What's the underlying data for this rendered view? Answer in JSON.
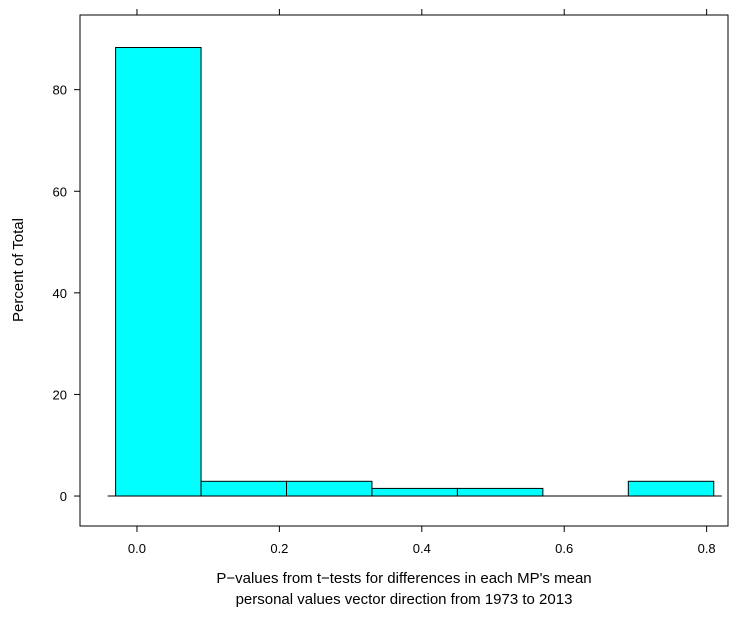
{
  "chart_data": {
    "type": "bar",
    "xlabel_lines": [
      "P−values from t−tests for differences in each MP's mean",
      "personal values vector direction from 1973 to 2013"
    ],
    "ylabel": "Percent of Total",
    "bins": [
      {
        "start": -0.03,
        "end": 0.09,
        "value": 88.3
      },
      {
        "start": 0.09,
        "end": 0.21,
        "value": 2.9
      },
      {
        "start": 0.21,
        "end": 0.33,
        "value": 2.9
      },
      {
        "start": 0.33,
        "end": 0.45,
        "value": 1.5
      },
      {
        "start": 0.45,
        "end": 0.57,
        "value": 1.5
      },
      {
        "start": 0.57,
        "end": 0.69,
        "value": 0
      },
      {
        "start": 0.69,
        "end": 0.81,
        "value": 2.9
      }
    ],
    "x_ticks": [
      0.0,
      0.2,
      0.4,
      0.6,
      0.8
    ],
    "x_tick_labels": [
      "0.0",
      "0.2",
      "0.4",
      "0.6",
      "0.8"
    ],
    "y_ticks": [
      0,
      20,
      40,
      60,
      80
    ],
    "y_tick_labels": [
      "0",
      "20",
      "40",
      "60",
      "80"
    ],
    "xlim": [
      -0.08,
      0.83
    ],
    "ylim": [
      -5.9,
      94.7
    ],
    "bar_color": "#00ffff",
    "grid": false
  }
}
